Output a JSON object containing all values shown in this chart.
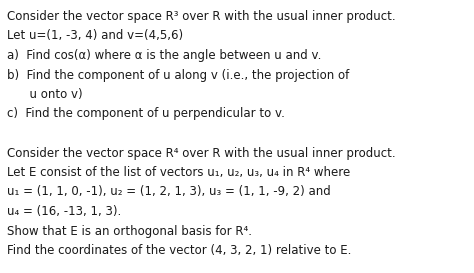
{
  "background_color": "#ffffff",
  "figsize": [
    4.74,
    2.73
  ],
  "dpi": 100,
  "font_color": "#1a1a1a",
  "fontsize": 8.5,
  "lines": [
    "Consider the vector space R³ over R with the usual inner product.",
    "Let u=(1, -3, 4) and v=(4,5,6)",
    "a)  Find cos(α) where α is the angle between u and v.",
    "b)  Find the component of u along v (i.e., the projection of",
    "      u onto v)",
    "c)  Find the component of u perpendicular to v.",
    "",
    "Consider the vector space R⁴ over R with the usual inner product.",
    "Let E consist of the list of vectors u₁, u₂, u₃, u₄ in R⁴ where",
    "u₁ = (1, 1, 0, -1), u₂ = (1, 2, 1, 3), u₃ = (1, 1, -9, 2) and",
    "u₄ = (16, -13, 1, 3).",
    "Show that E is an orthogonal basis for R⁴.",
    "Find the coordinates of the vector (4, 3, 2, 1) relative to E."
  ]
}
